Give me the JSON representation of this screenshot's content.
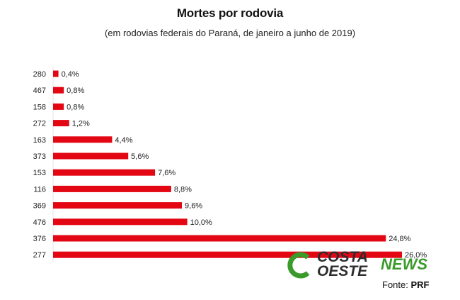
{
  "chart_data": {
    "type": "bar",
    "orientation": "horizontal",
    "title": "Mortes por rodovia",
    "subtitle": "(em rodovias federais do Paraná, de janeiro a junho de 2019)",
    "categories": [
      "280",
      "467",
      "158",
      "272",
      "163",
      "373",
      "153",
      "116",
      "369",
      "476",
      "376",
      "277"
    ],
    "values": [
      0.4,
      0.8,
      0.8,
      1.2,
      4.4,
      5.6,
      7.6,
      8.8,
      9.6,
      10.0,
      24.8,
      26.0
    ],
    "value_labels": [
      "0,4%",
      "0,8%",
      "0,8%",
      "1,2%",
      "4,4%",
      "5,6%",
      "7,6%",
      "8,8%",
      "9,6%",
      "10,0%",
      "24,8%",
      "26,0%"
    ],
    "xlim": [
      0,
      26.0
    ],
    "grid": false,
    "legend": "none",
    "bar_color": "#e30613"
  },
  "source": {
    "label": "Fonte:",
    "value": "PRF"
  },
  "logo": {
    "line1": "COSTA",
    "line2": "OESTE",
    "line3": "NEWS",
    "mark_color": "#3a9a2a",
    "text_color": "#2d2d2d",
    "accent_color": "#3a9a2a"
  }
}
